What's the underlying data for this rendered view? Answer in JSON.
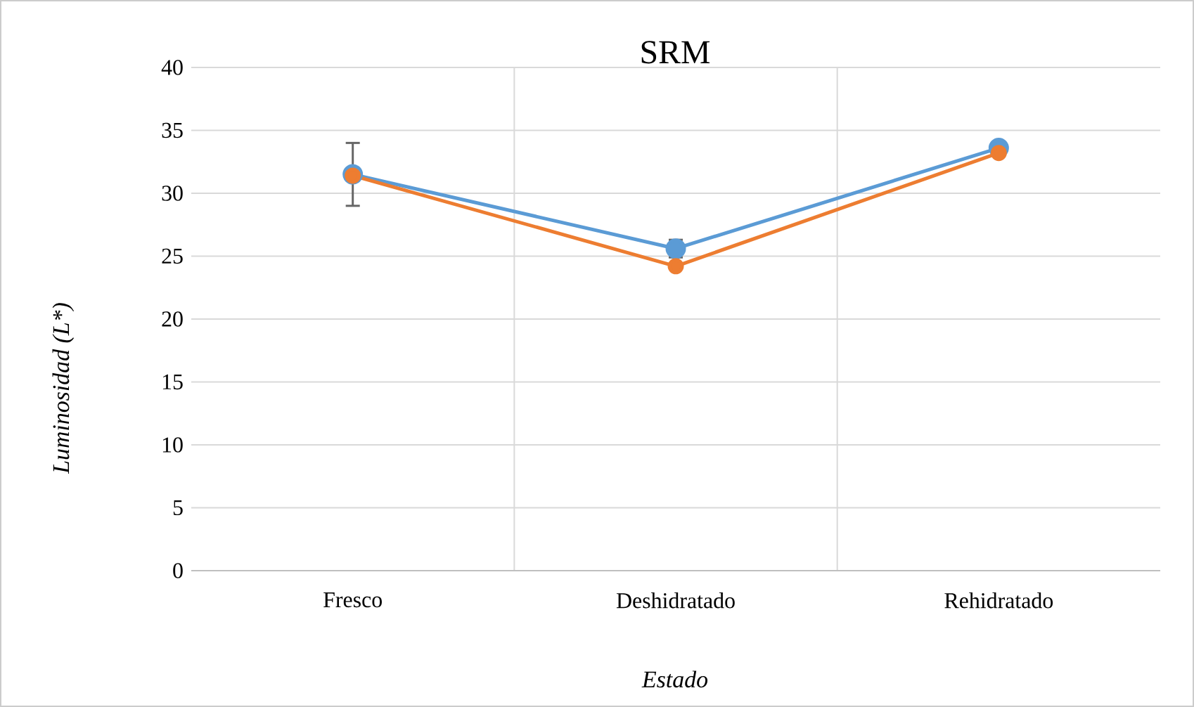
{
  "chart_data": {
    "type": "line",
    "title": "SRM",
    "xlabel": "Estado",
    "ylabel": "Luminosidad (L*)",
    "categories": [
      "Fresco",
      "Deshidratado",
      "Rehidratado"
    ],
    "series": [
      {
        "color": "#5b9bd5",
        "values": [
          31.5,
          25.6,
          33.6
        ],
        "errors": [
          2.5,
          0.7,
          null
        ]
      },
      {
        "color": "#ed7d31",
        "values": [
          31.4,
          24.2,
          33.2
        ]
      }
    ],
    "ylim": [
      0,
      40
    ],
    "yticks": [
      0,
      5,
      10,
      15,
      20,
      25,
      30,
      35,
      40
    ],
    "grid": true,
    "marker": "circle",
    "line_style": "solid"
  }
}
